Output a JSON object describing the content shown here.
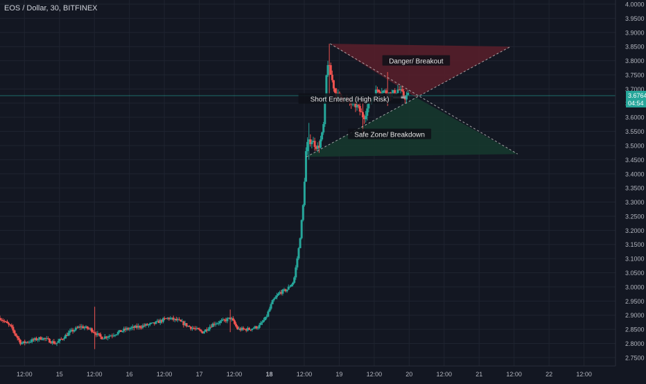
{
  "chart_data": {
    "type": "candlestick",
    "title": "EOS / Dollar, 30, BITFINEX",
    "colors": {
      "background": "#131722",
      "up": "#26a69a",
      "down": "#ef5350",
      "grid": "#1f2430",
      "axis_text": "#b2b5be",
      "current_price_bg": "#26a69a",
      "danger_fill": "#5a1f2a",
      "safe_fill": "#163a2e",
      "label_bg": "#0f1117"
    },
    "y_axis": {
      "ylim": [
        2.74,
        4.0
      ],
      "ticks": [
        "4.0000",
        "3.9500",
        "3.9000",
        "3.8500",
        "3.8000",
        "3.7500",
        "3.7000",
        "3.6500",
        "3.6000",
        "3.5500",
        "3.5000",
        "3.4500",
        "3.4000",
        "3.3500",
        "3.3000",
        "3.2500",
        "3.2000",
        "3.1500",
        "3.1000",
        "3.0500",
        "3.0000",
        "2.9500",
        "2.9000",
        "2.8500",
        "2.8000",
        "2.7500"
      ]
    },
    "x_axis": {
      "xlim": [
        0,
        8.8
      ],
      "ticks": [
        {
          "x": 0.35,
          "label": "12:00",
          "bold": false
        },
        {
          "x": 0.85,
          "label": "15",
          "bold": false
        },
        {
          "x": 1.35,
          "label": "12:00",
          "bold": false
        },
        {
          "x": 1.85,
          "label": "16",
          "bold": false
        },
        {
          "x": 2.35,
          "label": "12:00",
          "bold": false
        },
        {
          "x": 2.85,
          "label": "17",
          "bold": false
        },
        {
          "x": 3.35,
          "label": "12:00",
          "bold": false
        },
        {
          "x": 3.85,
          "label": "18",
          "bold": true
        },
        {
          "x": 4.35,
          "label": "12:00",
          "bold": false
        },
        {
          "x": 4.85,
          "label": "19",
          "bold": false
        },
        {
          "x": 5.35,
          "label": "12:00",
          "bold": false
        },
        {
          "x": 5.85,
          "label": "20",
          "bold": false
        },
        {
          "x": 6.35,
          "label": "12:00",
          "bold": false
        },
        {
          "x": 6.85,
          "label": "21",
          "bold": false
        },
        {
          "x": 7.35,
          "label": "12:00",
          "bold": false
        },
        {
          "x": 7.85,
          "label": "22",
          "bold": false
        },
        {
          "x": 8.35,
          "label": "12:00",
          "bold": false
        }
      ]
    },
    "current_price": {
      "value": 3.6764,
      "label": "3.6764",
      "countdown": "04:54"
    },
    "anchors": [
      {
        "t": 0.0,
        "p": 2.89
      },
      {
        "t": 0.15,
        "p": 2.86
      },
      {
        "t": 0.3,
        "p": 2.8
      },
      {
        "t": 0.45,
        "p": 2.81
      },
      {
        "t": 0.6,
        "p": 2.82
      },
      {
        "t": 0.8,
        "p": 2.8
      },
      {
        "t": 1.0,
        "p": 2.84
      },
      {
        "t": 1.15,
        "p": 2.86
      },
      {
        "t": 1.3,
        "p": 2.85
      },
      {
        "t": 1.45,
        "p": 2.82
      },
      {
        "t": 1.6,
        "p": 2.83
      },
      {
        "t": 1.8,
        "p": 2.85
      },
      {
        "t": 2.0,
        "p": 2.86
      },
      {
        "t": 2.2,
        "p": 2.87
      },
      {
        "t": 2.4,
        "p": 2.89
      },
      {
        "t": 2.55,
        "p": 2.88
      },
      {
        "t": 2.7,
        "p": 2.86
      },
      {
        "t": 2.9,
        "p": 2.84
      },
      {
        "t": 3.05,
        "p": 2.87
      },
      {
        "t": 3.2,
        "p": 2.88
      },
      {
        "t": 3.3,
        "p": 2.89
      },
      {
        "t": 3.4,
        "p": 2.85
      },
      {
        "t": 3.55,
        "p": 2.85
      },
      {
        "t": 3.7,
        "p": 2.86
      },
      {
        "t": 3.8,
        "p": 2.89
      },
      {
        "t": 3.9,
        "p": 2.95
      },
      {
        "t": 4.0,
        "p": 2.98
      },
      {
        "t": 4.1,
        "p": 2.99
      },
      {
        "t": 4.2,
        "p": 3.02
      },
      {
        "t": 4.28,
        "p": 3.15
      },
      {
        "t": 4.33,
        "p": 3.27
      },
      {
        "t": 4.38,
        "p": 3.5
      },
      {
        "t": 4.45,
        "p": 3.52
      },
      {
        "t": 4.55,
        "p": 3.49
      },
      {
        "t": 4.62,
        "p": 3.55
      },
      {
        "t": 4.68,
        "p": 3.8
      },
      {
        "t": 4.72,
        "p": 3.76
      },
      {
        "t": 4.8,
        "p": 3.68
      },
      {
        "t": 4.9,
        "p": 3.67
      },
      {
        "t": 5.0,
        "p": 3.65
      },
      {
        "t": 5.1,
        "p": 3.64
      },
      {
        "t": 5.2,
        "p": 3.6
      },
      {
        "t": 5.3,
        "p": 3.66
      },
      {
        "t": 5.4,
        "p": 3.7
      },
      {
        "t": 5.5,
        "p": 3.69
      },
      {
        "t": 5.6,
        "p": 3.68
      },
      {
        "t": 5.7,
        "p": 3.7
      },
      {
        "t": 5.78,
        "p": 3.67
      },
      {
        "t": 5.85,
        "p": 3.68
      }
    ],
    "spikes": [
      {
        "t": 4.7,
        "high": 3.86,
        "low": 3.66
      },
      {
        "t": 5.18,
        "high": 3.66,
        "low": 3.545
      },
      {
        "t": 5.55,
        "high": 3.76,
        "low": 3.64
      },
      {
        "t": 4.42,
        "high": 3.58,
        "low": 3.45
      },
      {
        "t": 1.35,
        "high": 2.93,
        "low": 2.78
      },
      {
        "t": 3.3,
        "high": 2.92,
        "low": 2.84
      }
    ],
    "drawings": {
      "danger_zone": {
        "points": [
          [
            4.72,
            3.86
          ],
          [
            7.3,
            3.85
          ],
          [
            5.95,
            3.67
          ]
        ]
      },
      "safe_zone": {
        "points": [
          [
            4.38,
            3.46
          ],
          [
            7.4,
            3.47
          ],
          [
            5.95,
            3.67
          ]
        ]
      },
      "upper_trendline": {
        "from": [
          4.72,
          3.86
        ],
        "to": [
          7.4,
          3.47
        ]
      },
      "lower_trendline": {
        "from": [
          4.38,
          3.46
        ],
        "to": [
          7.3,
          3.85
        ]
      },
      "short_marker": {
        "x1": 5.62,
        "x2": 5.8,
        "p": 3.67
      }
    },
    "annotations": [
      {
        "key": "danger",
        "text": "Danger/ Breakout",
        "x": 5.95,
        "p": 3.8
      },
      {
        "key": "short",
        "text": "Short Entered (High Risk)",
        "x": 5.0,
        "p": 3.665
      },
      {
        "key": "safe",
        "text": "Safe Zone/ Breakdown",
        "x": 5.57,
        "p": 3.54
      }
    ]
  }
}
